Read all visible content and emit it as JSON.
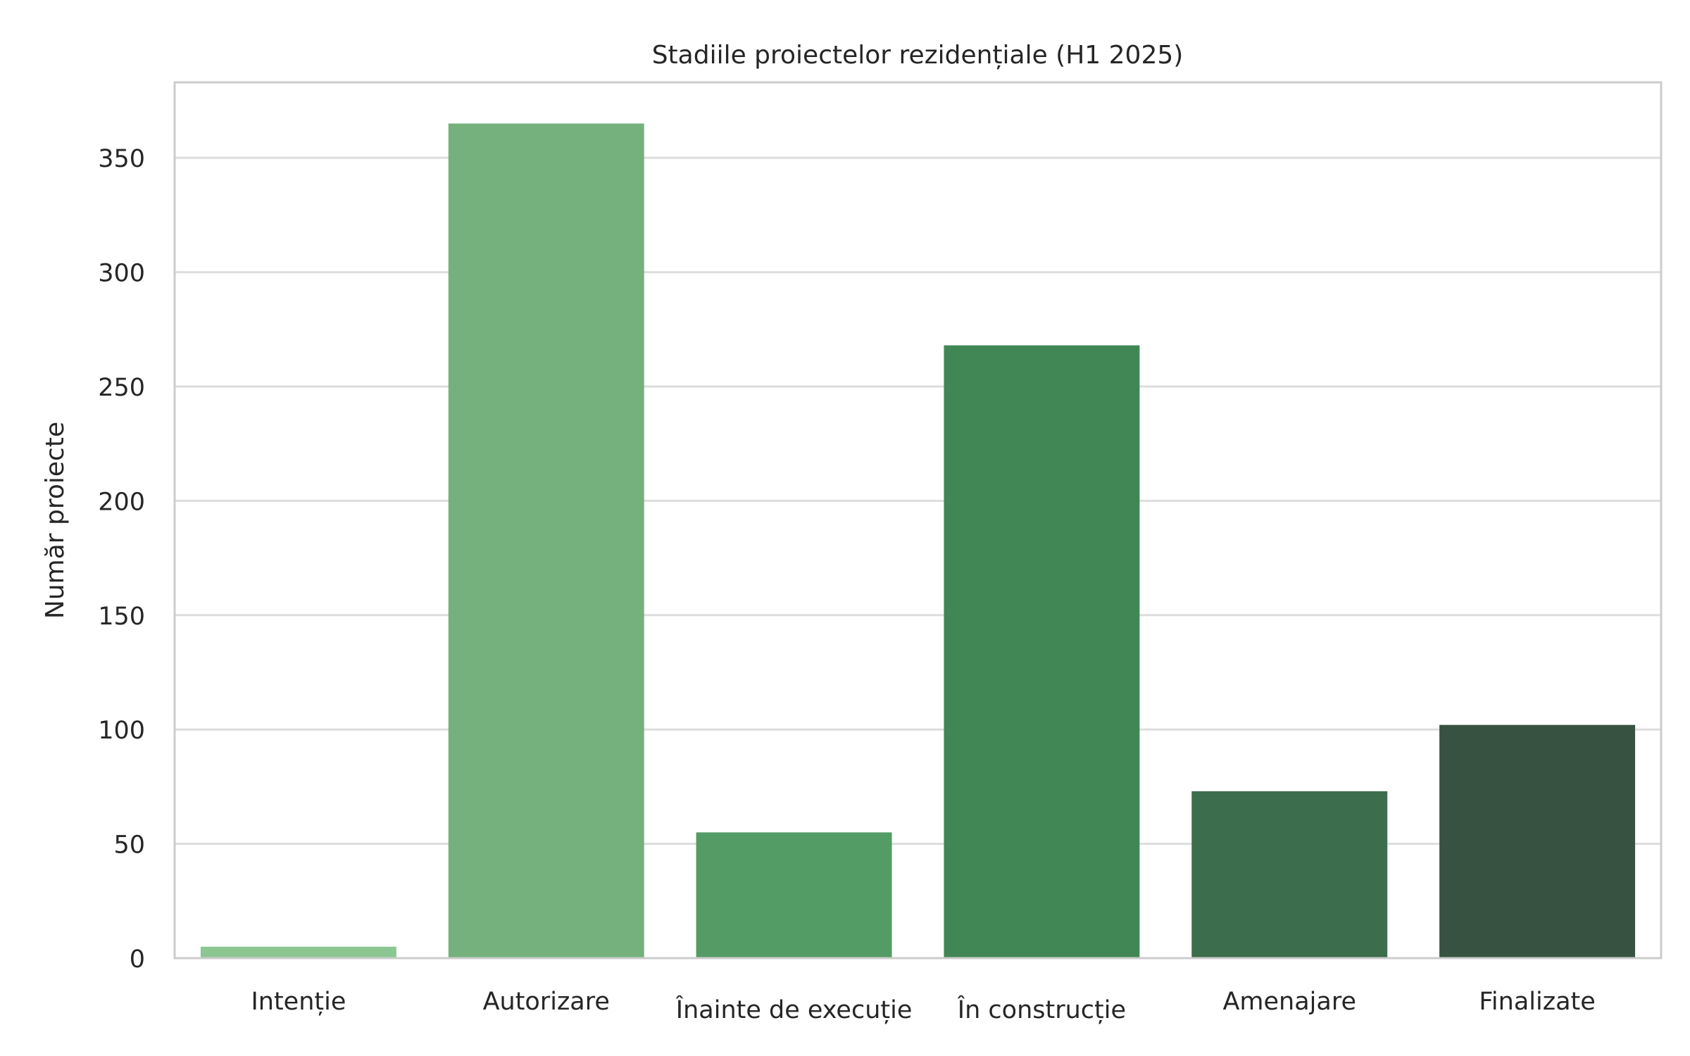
{
  "chart_data": {
    "type": "bar",
    "title": "Stadiile proiectelor rezidențiale (H1 2025)",
    "xlabel": "",
    "ylabel": "Număr proiecte",
    "categories": [
      "Intenție",
      "Autorizare",
      "Înainte de execuție",
      "În construcție",
      "Amenajare",
      "Finalizate"
    ],
    "values": [
      5,
      365,
      55,
      268,
      73,
      102
    ],
    "colors": [
      "#8cc691",
      "#74b17c",
      "#549c65",
      "#418755",
      "#3c6d4c",
      "#375241"
    ],
    "ylim": [
      0,
      383
    ],
    "yticks": [
      0,
      50,
      100,
      150,
      200,
      250,
      300,
      350
    ],
    "grid": true,
    "legend": "none"
  }
}
